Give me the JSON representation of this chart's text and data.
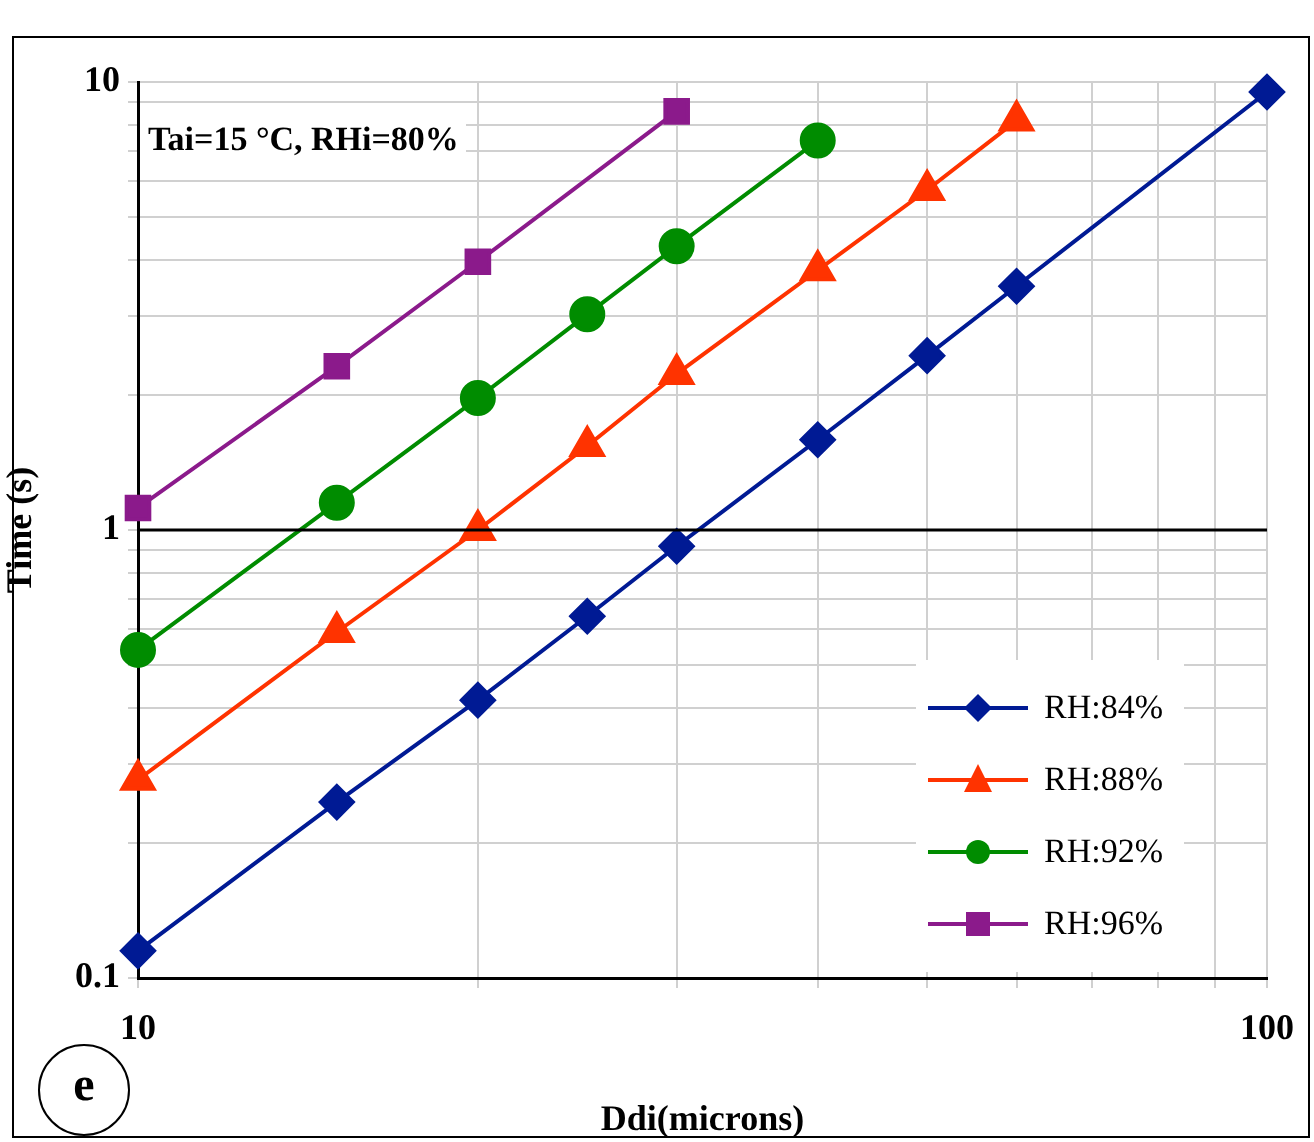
{
  "chart_data": {
    "type": "line",
    "xlabel": "Ddi(microns)",
    "ylabel": "Time (s)",
    "log": "xy",
    "xlim": [
      10,
      100
    ],
    "ylim": [
      0.1,
      10
    ],
    "xticks": [
      10,
      {
        "value": 20,
        "label": null
      },
      {
        "value": 30,
        "label": null
      },
      {
        "value": 40,
        "label": null
      },
      {
        "value": 50,
        "label": null
      },
      {
        "value": 60,
        "label": null
      },
      {
        "value": 70,
        "label": null
      },
      {
        "value": 80,
        "label": null
      },
      {
        "value": 90,
        "label": null
      },
      100
    ],
    "yticks": [
      0.1,
      {
        "value": 0.2,
        "label": null
      },
      {
        "value": 0.3,
        "label": null
      },
      {
        "value": 0.4,
        "label": null
      },
      {
        "value": 0.5,
        "label": null
      },
      {
        "value": 0.6,
        "label": null
      },
      {
        "value": 0.7,
        "label": null
      },
      {
        "value": 0.8,
        "label": null
      },
      {
        "value": 0.9,
        "label": null
      },
      1,
      {
        "value": 2,
        "label": null
      },
      {
        "value": 3,
        "label": null
      },
      {
        "value": 4,
        "label": null
      },
      {
        "value": 5,
        "label": null
      },
      {
        "value": 6,
        "label": null
      },
      {
        "value": 7,
        "label": null
      },
      {
        "value": 8,
        "label": null
      },
      {
        "value": 9,
        "label": null
      },
      10
    ],
    "grid": true,
    "legend": "right",
    "ref_lines": [
      {
        "axis": "y",
        "value": 1,
        "color": "#000000"
      }
    ],
    "line_style": "solid",
    "annotations": [
      "Tai=15 °C, RHi=80%",
      "e"
    ],
    "series": [
      {
        "name": "RH:84%",
        "color": "#001a94",
        "marker": "diamond",
        "x": [
          10,
          15,
          20,
          25,
          30,
          40,
          50,
          60,
          100
        ],
        "values": [
          0.115,
          0.247,
          0.417,
          0.642,
          0.92,
          1.59,
          2.45,
          3.5,
          9.5
        ]
      },
      {
        "name": "RH:88%",
        "color": "#ff3300",
        "marker": "triangle",
        "x": [
          10,
          15,
          20,
          25,
          30,
          40,
          50,
          60
        ],
        "values": [
          0.277,
          0.592,
          1.0,
          1.54,
          2.23,
          3.8,
          5.74,
          8.2
        ]
      },
      {
        "name": "RH:92%",
        "color": "#008c00",
        "marker": "circle",
        "x": [
          10,
          15,
          20,
          25,
          30,
          40
        ],
        "values": [
          0.54,
          1.15,
          1.97,
          3.03,
          4.3,
          7.4
        ]
      },
      {
        "name": "RH:96%",
        "color": "#8b1a8b",
        "marker": "square",
        "x": [
          10,
          15,
          20,
          30
        ],
        "values": [
          1.12,
          2.32,
          3.97,
          8.6
        ]
      }
    ]
  }
}
